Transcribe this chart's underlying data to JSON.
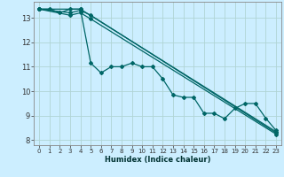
{
  "xlabel": "Humidex (Indice chaleur)",
  "ylabel": "",
  "bg_color": "#cceeff",
  "grid_color": "#b0d4d4",
  "line_color": "#006666",
  "xlim": [
    -0.5,
    23.5
  ],
  "ylim": [
    7.8,
    13.65
  ],
  "yticks": [
    8,
    9,
    10,
    11,
    12,
    13
  ],
  "xticks": [
    0,
    1,
    2,
    3,
    4,
    5,
    6,
    7,
    8,
    9,
    10,
    11,
    12,
    13,
    14,
    15,
    16,
    17,
    18,
    19,
    20,
    21,
    22,
    23
  ],
  "line1_x": [
    0,
    1,
    2,
    3,
    4,
    5,
    6,
    7,
    8,
    9,
    10,
    11,
    12,
    13,
    14,
    15,
    16,
    17,
    18,
    19,
    20,
    21,
    22,
    23
  ],
  "line1_y": [
    13.35,
    13.35,
    13.2,
    13.35,
    13.35,
    11.15,
    10.75,
    11.0,
    11.0,
    11.15,
    11.0,
    11.0,
    10.5,
    9.85,
    9.75,
    9.75,
    9.1,
    9.1,
    8.88,
    9.3,
    9.5,
    9.5,
    8.9,
    8.4
  ],
  "line2_x": [
    0,
    4,
    23
  ],
  "line2_y": [
    13.35,
    13.35,
    8.35
  ],
  "line3_x": [
    0,
    3,
    4,
    5,
    23
  ],
  "line3_y": [
    13.35,
    13.2,
    13.3,
    13.1,
    8.3
  ],
  "line4_x": [
    0,
    3,
    4,
    5,
    23
  ],
  "line4_y": [
    13.35,
    13.1,
    13.2,
    12.95,
    8.25
  ]
}
